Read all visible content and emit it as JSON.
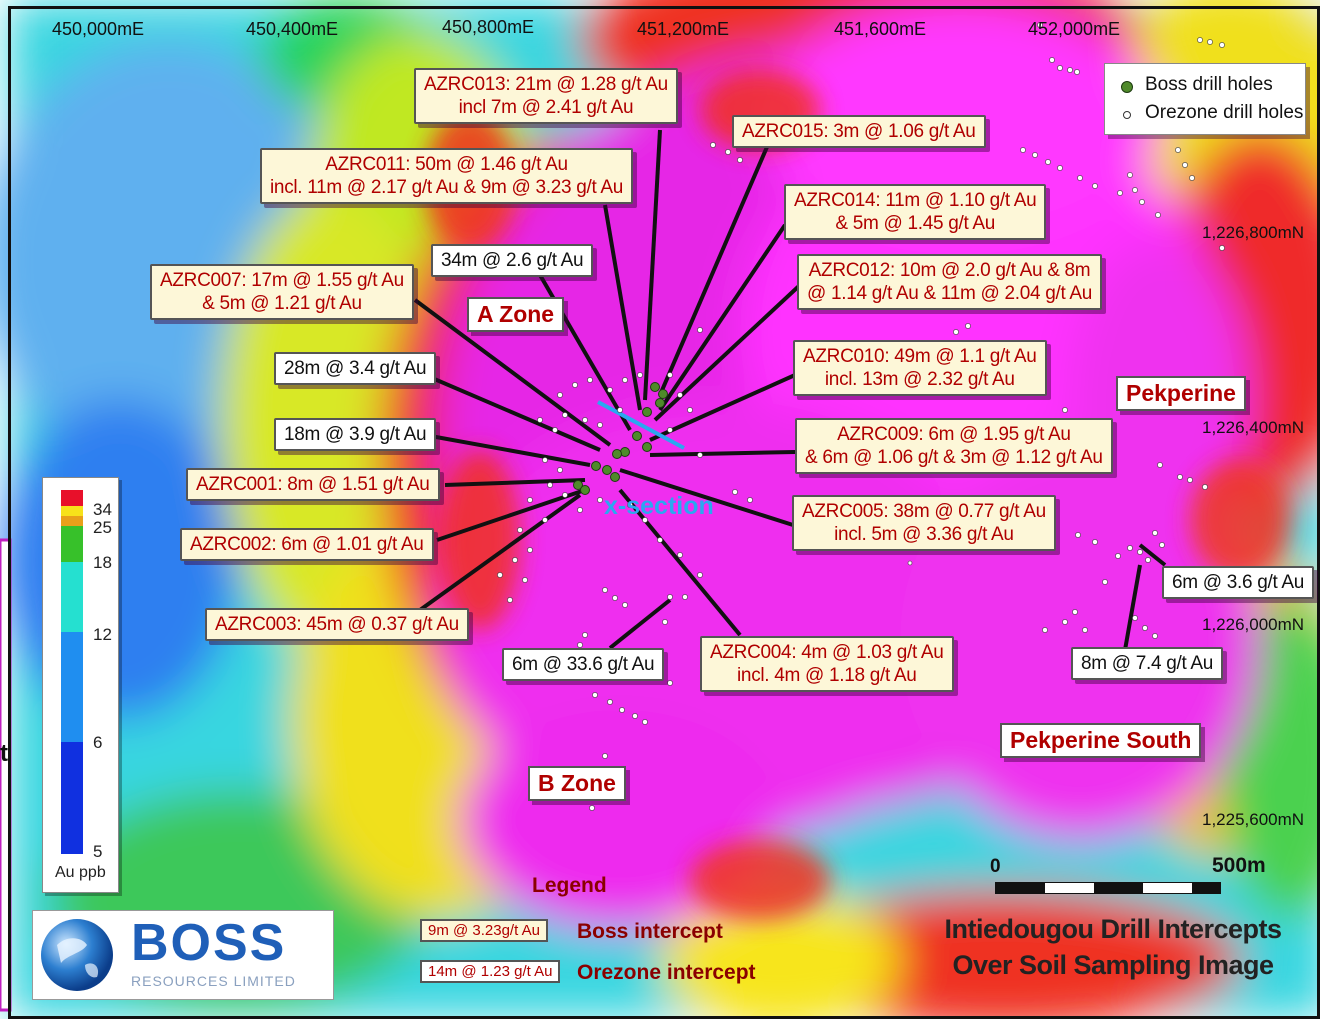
{
  "coordinates": {
    "eastings": [
      "450,000mE",
      "450,400mE",
      "450,800mE",
      "451,200mE",
      "451,600mE",
      "452,000mE"
    ],
    "northings": [
      "1,226,800mN",
      "1,226,400mN",
      "1,226,000mN",
      "1,225,600mN"
    ]
  },
  "legend_box": {
    "boss": "Boss drill holes",
    "orezone": "Orezone drill holes",
    "boss_color": "#4f8a2a",
    "orezone_color": "#ffffff"
  },
  "intercepts": [
    {
      "id": "azrc013",
      "lines": [
        "AZRC013: 21m @ 1.28 g/t Au",
        "incl 7m @ 2.41 g/t Au"
      ],
      "style": "boss"
    },
    {
      "id": "azrc015",
      "lines": [
        "AZRC015: 3m @ 1.06 g/t Au"
      ],
      "style": "boss"
    },
    {
      "id": "azrc011",
      "lines": [
        "AZRC011: 50m @ 1.46 g/t Au",
        "incl. 11m @ 2.17 g/t Au & 9m @ 3.23 g/t Au"
      ],
      "style": "boss"
    },
    {
      "id": "azrc014",
      "lines": [
        "AZRC014: 11m @ 1.10 g/t Au",
        "& 5m @ 1.45 g/t Au"
      ],
      "style": "boss"
    },
    {
      "id": "oz34",
      "lines": [
        "34m @ 2.6 g/t Au"
      ],
      "style": "orezone"
    },
    {
      "id": "azrc012",
      "lines": [
        "AZRC012: 10m @ 2.0 g/t Au & 8m",
        "@ 1.14 g/t Au & 11m @ 2.04 g/t Au"
      ],
      "style": "boss"
    },
    {
      "id": "azrc007",
      "lines": [
        "AZRC007: 17m @ 1.55 g/t Au",
        "& 5m @ 1.21 g/t Au"
      ],
      "style": "boss"
    },
    {
      "id": "oz28",
      "lines": [
        "28m @ 3.4 g/t Au"
      ],
      "style": "orezone"
    },
    {
      "id": "azrc010",
      "lines": [
        "AZRC010: 49m @ 1.1 g/t Au",
        "incl. 13m @ 2.32 g/t Au"
      ],
      "style": "boss"
    },
    {
      "id": "oz18",
      "lines": [
        "18m @ 3.9 g/t Au"
      ],
      "style": "orezone"
    },
    {
      "id": "azrc009",
      "lines": [
        "AZRC009: 6m @ 1.95 g/t Au",
        "& 6m @ 1.06 g/t & 3m @ 1.12 g/t Au"
      ],
      "style": "boss"
    },
    {
      "id": "azrc001",
      "lines": [
        "AZRC001: 8m @ 1.51 g/t Au"
      ],
      "style": "boss"
    },
    {
      "id": "azrc005",
      "lines": [
        "AZRC005: 38m @ 0.77 g/t Au",
        "incl. 5m @ 3.36 g/t Au"
      ],
      "style": "boss"
    },
    {
      "id": "azrc002",
      "lines": [
        "AZRC002: 6m @ 1.01 g/t Au"
      ],
      "style": "boss"
    },
    {
      "id": "oz6a",
      "lines": [
        "6m @ 3.6 g/t Au"
      ],
      "style": "orezone"
    },
    {
      "id": "azrc003",
      "lines": [
        "AZRC003: 45m @ 0.37 g/t Au"
      ],
      "style": "boss"
    },
    {
      "id": "azrc004",
      "lines": [
        "AZRC004: 4m @ 1.03 g/t Au",
        "incl. 4m @ 1.18 g/t Au"
      ],
      "style": "boss"
    },
    {
      "id": "oz6b",
      "lines": [
        "6m @ 33.6 g/t Au"
      ],
      "style": "orezone"
    },
    {
      "id": "oz8",
      "lines": [
        "8m @ 7.4 g/t Au"
      ],
      "style": "orezone"
    }
  ],
  "zones": {
    "a_zone": "A Zone",
    "b_zone": "B Zone",
    "pekperine": "Pekperine",
    "pekperine_south": "Pekperine South"
  },
  "xsection_label": "x-section",
  "colorbar": {
    "ticks": [
      "34",
      "25",
      "18",
      "12",
      "6",
      "5"
    ],
    "unit": "Au ppb",
    "colors": [
      "#e8102a",
      "#f7e21a",
      "#37c12a",
      "#25e0d0",
      "#1f8ef0",
      "#1030e0"
    ]
  },
  "scale_bar": {
    "zero": "0",
    "end": "500m"
  },
  "legend": {
    "title": "Legend",
    "boss_sample": "9m @ 3.23g/t Au",
    "boss_text": "Boss intercept",
    "orezone_sample": "14m @ 1.23 g/t Au",
    "orezone_text": "Orezone intercept"
  },
  "logo": {
    "name": "BOSS",
    "sub": "RESOURCES LIMITED"
  },
  "title": {
    "line1": "Intiedougou Drill Intercepts",
    "line2": "Over Soil Sampling Image"
  },
  "cropped_left_char": "t"
}
